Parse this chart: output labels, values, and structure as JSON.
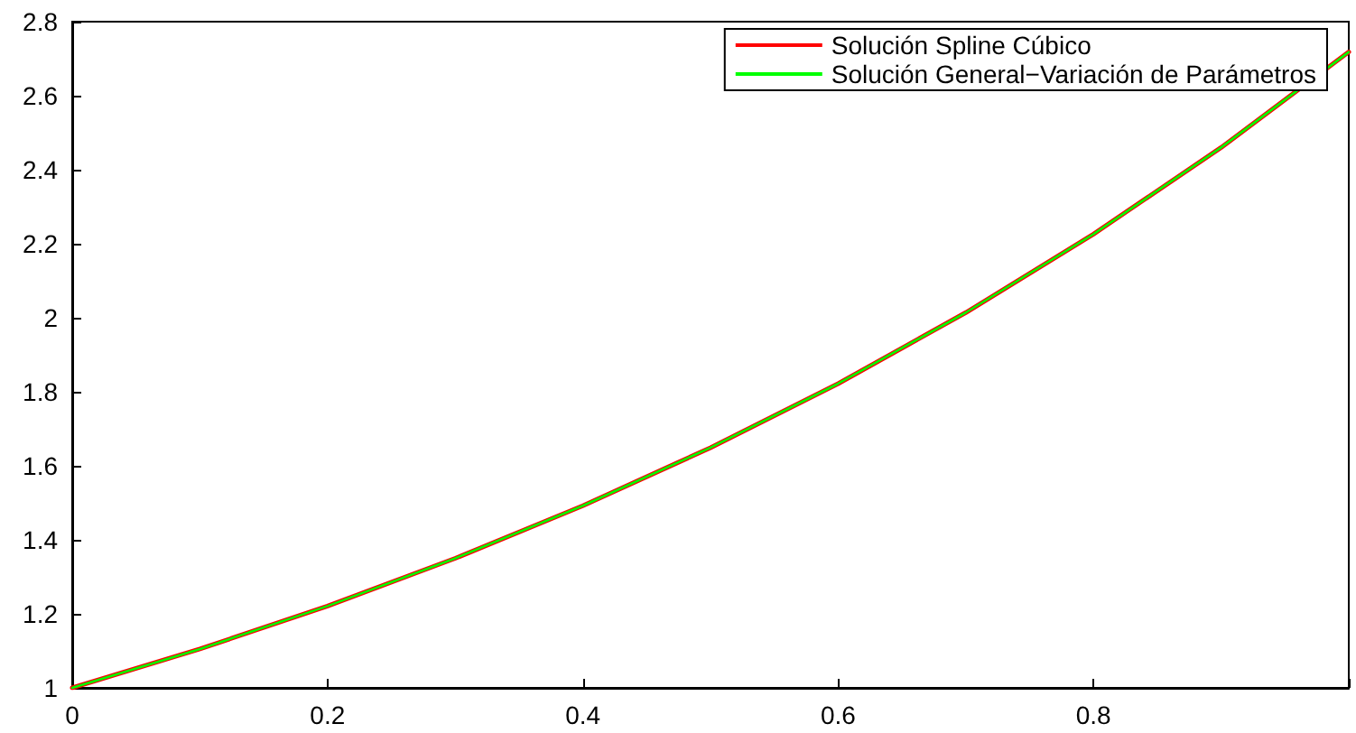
{
  "chart_data": {
    "type": "line",
    "x": [
      0,
      0.1,
      0.2,
      0.3,
      0.4,
      0.5,
      0.6,
      0.7,
      0.8,
      0.9,
      1
    ],
    "series": [
      {
        "name": "Solución Spline Cúbico",
        "color": "#ff0000",
        "values": [
          1,
          1.105,
          1.221,
          1.35,
          1.492,
          1.649,
          1.822,
          2.014,
          2.226,
          2.46,
          2.718
        ]
      },
      {
        "name": "Solución General−Variación de Parámetros",
        "color": "#00ff00",
        "values": [
          1,
          1.105,
          1.221,
          1.35,
          1.492,
          1.649,
          1.822,
          2.014,
          2.226,
          2.46,
          2.718
        ]
      }
    ],
    "xlim": [
      0,
      1
    ],
    "xticks": [
      0,
      0.2,
      0.4,
      0.6,
      0.8,
      {
        "value": 1,
        "label": null
      }
    ],
    "ylim": [
      1,
      2.8
    ],
    "yticks": [
      1,
      1.2,
      1.4,
      1.6,
      1.8,
      2,
      2.2,
      2.4,
      2.6,
      2.8
    ],
    "grid": false,
    "legend": "top right",
    "marker": "none",
    "line_style": "solid"
  }
}
